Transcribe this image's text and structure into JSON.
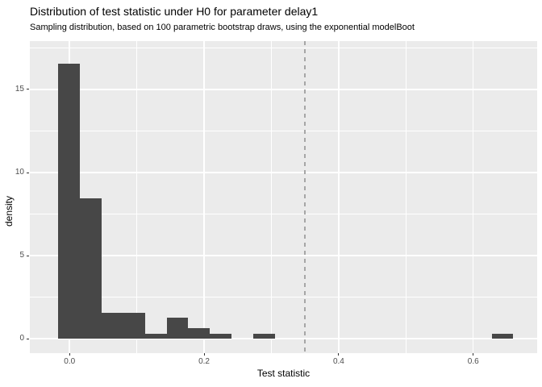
{
  "header": {
    "title": "Distribution of test statistic under H0 for parameter delay1",
    "subtitle": "Sampling distribution, based on 100 parametric bootstrap draws, using the exponential modelBoot"
  },
  "chart_data": {
    "type": "bar",
    "subtype": "histogram",
    "title": "Distribution of test statistic under H0 for parameter delay1",
    "subtitle": "Sampling distribution, based on 100 parametric bootstrap draws, using the exponential modelBoot",
    "xlabel": "Test statistic",
    "ylabel": "density",
    "xlim": [
      -0.059,
      0.695
    ],
    "ylim": [
      -0.87,
      17.91
    ],
    "x_ticks": [
      0.0,
      0.2,
      0.4,
      0.6
    ],
    "x_tick_labels": [
      "0.0",
      "0.2",
      "0.4",
      "0.6"
    ],
    "y_ticks": [
      0,
      5,
      10,
      15
    ],
    "y_tick_labels": [
      "0",
      "5",
      "10",
      "15"
    ],
    "x_minor_gridlines": [
      0.1,
      0.3,
      0.5
    ],
    "y_minor_gridlines": [
      2.5,
      7.5,
      12.5,
      17.5
    ],
    "grid": true,
    "legend": "none",
    "binwidth": 0.0322,
    "bins": [
      {
        "x0": -0.0167,
        "x1": 0.0155,
        "count": 53,
        "density": 16.56
      },
      {
        "x0": 0.0155,
        "x1": 0.0477,
        "count": 27,
        "density": 8.44
      },
      {
        "x0": 0.0477,
        "x1": 0.0799,
        "count": 5,
        "density": 1.56
      },
      {
        "x0": 0.0799,
        "x1": 0.1121,
        "count": 5,
        "density": 1.56
      },
      {
        "x0": 0.1121,
        "x1": 0.1443,
        "count": 1,
        "density": 0.31
      },
      {
        "x0": 0.1443,
        "x1": 0.1765,
        "count": 4,
        "density": 1.25
      },
      {
        "x0": 0.1765,
        "x1": 0.2087,
        "count": 2,
        "density": 0.63
      },
      {
        "x0": 0.2087,
        "x1": 0.2409,
        "count": 1,
        "density": 0.31
      },
      {
        "x0": 0.2731,
        "x1": 0.3053,
        "count": 1,
        "density": 0.31
      },
      {
        "x0": 0.6273,
        "x1": 0.6595,
        "count": 1,
        "density": 0.31
      }
    ],
    "vline": {
      "x": 0.35,
      "style": "dashed"
    },
    "colors": {
      "panel_bg": "#EBEBEB",
      "bar_fill": "#474747",
      "gridline": "#FFFFFF",
      "vline": "#A6A6A6",
      "tick_mark": "#333333",
      "tick_label": "#4D4D4D",
      "text": "#000000"
    }
  }
}
